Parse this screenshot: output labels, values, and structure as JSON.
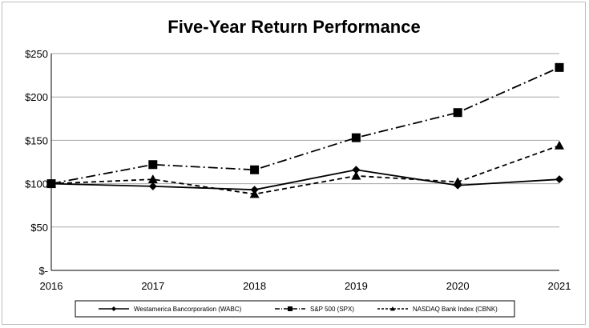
{
  "chart_data": {
    "type": "line",
    "title": "Five-Year Return Performance",
    "xlabel": "",
    "ylabel": "",
    "x": [
      "2016",
      "2017",
      "2018",
      "2019",
      "2020",
      "2021"
    ],
    "y_ticks": [
      "$-",
      "$50",
      "$100",
      "$150",
      "$200",
      "$250"
    ],
    "ylim": [
      0,
      250
    ],
    "grid": "horizontal",
    "legend_position": "bottom",
    "series": [
      {
        "name": "Westamerica Bancorporation (WABC)",
        "values": [
          100,
          97,
          93,
          116,
          98,
          105
        ],
        "marker": "diamond",
        "line_style": "solid",
        "color": "#000000"
      },
      {
        "name": "S&P 500 (SPX)",
        "values": [
          100,
          122,
          116,
          153,
          182,
          234
        ],
        "marker": "square",
        "line_style": "dash-dot",
        "color": "#000000"
      },
      {
        "name": "NASDAQ Bank Index (CBNK)",
        "values": [
          100,
          105,
          88,
          109,
          102,
          144
        ],
        "marker": "triangle",
        "line_style": "dashed",
        "color": "#000000"
      }
    ]
  }
}
